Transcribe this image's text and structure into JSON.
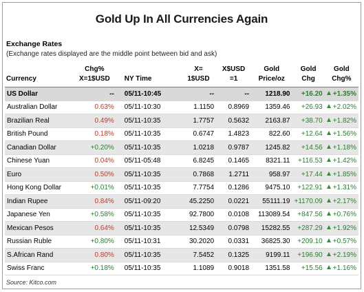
{
  "title": "Gold Up In All Currencies Again",
  "section": {
    "title": "Exchange Rates",
    "note": "(Exchange rates displayed are the middle point between bid and ask)"
  },
  "headers": {
    "currency": "Currency",
    "chgx_1": "Chg%",
    "chgx_2": "X=1$USD",
    "time": "NY Time",
    "rate_1": "X=",
    "rate_2": "1$USD",
    "usd_1": "X$USD",
    "usd_2": "=1",
    "price_1": "Gold",
    "price_2": "Price/oz",
    "chg_1": "Gold",
    "chg_2": "Chg",
    "chgp_1": "Gold",
    "chgp_2": "Chg%"
  },
  "colors": {
    "negative": "#c0392b",
    "positive": "#2e7d32",
    "up_arrow": "#3a8a3a"
  },
  "rows": [
    {
      "currency": "US Dollar",
      "chgx": "--",
      "chgx_color": "black",
      "time": "05/11-10:45",
      "rate": "--",
      "usd": "--",
      "price": "1218.90",
      "chg": "+16.20",
      "chgp": "+1.35%"
    },
    {
      "currency": "Australian Dollar",
      "chgx": "0.63%",
      "chgx_color": "red",
      "time": "05/11-10:30",
      "rate": "1.1150",
      "usd": "0.8969",
      "price": "1359.46",
      "chg": "+26.93",
      "chgp": "+2.02%"
    },
    {
      "currency": "Brazilian Real",
      "chgx": "0.49%",
      "chgx_color": "red",
      "time": "05/11-10:35",
      "rate": "1.7757",
      "usd": "0.5632",
      "price": "2163.87",
      "chg": "+38.70",
      "chgp": "+1.82%"
    },
    {
      "currency": "British Pound",
      "chgx": "0.18%",
      "chgx_color": "red",
      "time": "05/11-10:35",
      "rate": "0.6747",
      "usd": "1.4823",
      "price": "822.60",
      "chg": "+12.64",
      "chgp": "+1.56%"
    },
    {
      "currency": "Canadian Dollar",
      "chgx": "+0.20%",
      "chgx_color": "green",
      "time": "05/11-10:35",
      "rate": "1.0218",
      "usd": "0.9787",
      "price": "1245.82",
      "chg": "+14.56",
      "chgp": "+1.18%"
    },
    {
      "currency": "Chinese Yuan",
      "chgx": "0.04%",
      "chgx_color": "red",
      "time": "05/11-05:48",
      "rate": "6.8245",
      "usd": "0.1465",
      "price": "8321.11",
      "chg": "+116.53",
      "chgp": "+1.42%"
    },
    {
      "currency": "Euro",
      "chgx": "0.50%",
      "chgx_color": "red",
      "time": "05/11-10:35",
      "rate": "0.7868",
      "usd": "1.2711",
      "price": "958.97",
      "chg": "+17.44",
      "chgp": "+1.85%"
    },
    {
      "currency": "Hong Kong Dollar",
      "chgx": "+0.01%",
      "chgx_color": "green",
      "time": "05/11-10:35",
      "rate": "7.7754",
      "usd": "0.1286",
      "price": "9475.10",
      "chg": "+122.91",
      "chgp": "+1.31%"
    },
    {
      "currency": "Indian Rupee",
      "chgx": "0.84%",
      "chgx_color": "red",
      "time": "05/11-09:20",
      "rate": "45.2250",
      "usd": "0.0221",
      "price": "55111.19",
      "chg": "+1170.09",
      "chgp": "+2.17%"
    },
    {
      "currency": "Japanese Yen",
      "chgx": "+0.58%",
      "chgx_color": "green",
      "time": "05/11-10:35",
      "rate": "92.7800",
      "usd": "0.0108",
      "price": "113089.54",
      "chg": "+847.56",
      "chgp": "+0.76%"
    },
    {
      "currency": "Mexican Pesos",
      "chgx": "0.64%",
      "chgx_color": "red",
      "time": "05/11-10:35",
      "rate": "12.5349",
      "usd": "0.0798",
      "price": "15282.55",
      "chg": "+287.29",
      "chgp": "+1.92%"
    },
    {
      "currency": "Russian Ruble",
      "chgx": "+0.80%",
      "chgx_color": "green",
      "time": "05/11-10:31",
      "rate": "30.2020",
      "usd": "0.0331",
      "price": "36825.30",
      "chg": "+209.10",
      "chgp": "+0.57%"
    },
    {
      "currency": "S.African Rand",
      "chgx": "0.80%",
      "chgx_color": "red",
      "time": "05/11-10:35",
      "rate": "7.5452",
      "usd": "0.1325",
      "price": "9199.11",
      "chg": "+196.90",
      "chgp": "+2.19%"
    },
    {
      "currency": "Swiss Franc",
      "chgx": "+0.18%",
      "chgx_color": "green",
      "time": "05/11-10:35",
      "rate": "1.1089",
      "usd": "0.9018",
      "price": "1351.58",
      "chg": "+15.56",
      "chgp": "+1.16%"
    }
  ],
  "source": "Source: Kitco.com"
}
